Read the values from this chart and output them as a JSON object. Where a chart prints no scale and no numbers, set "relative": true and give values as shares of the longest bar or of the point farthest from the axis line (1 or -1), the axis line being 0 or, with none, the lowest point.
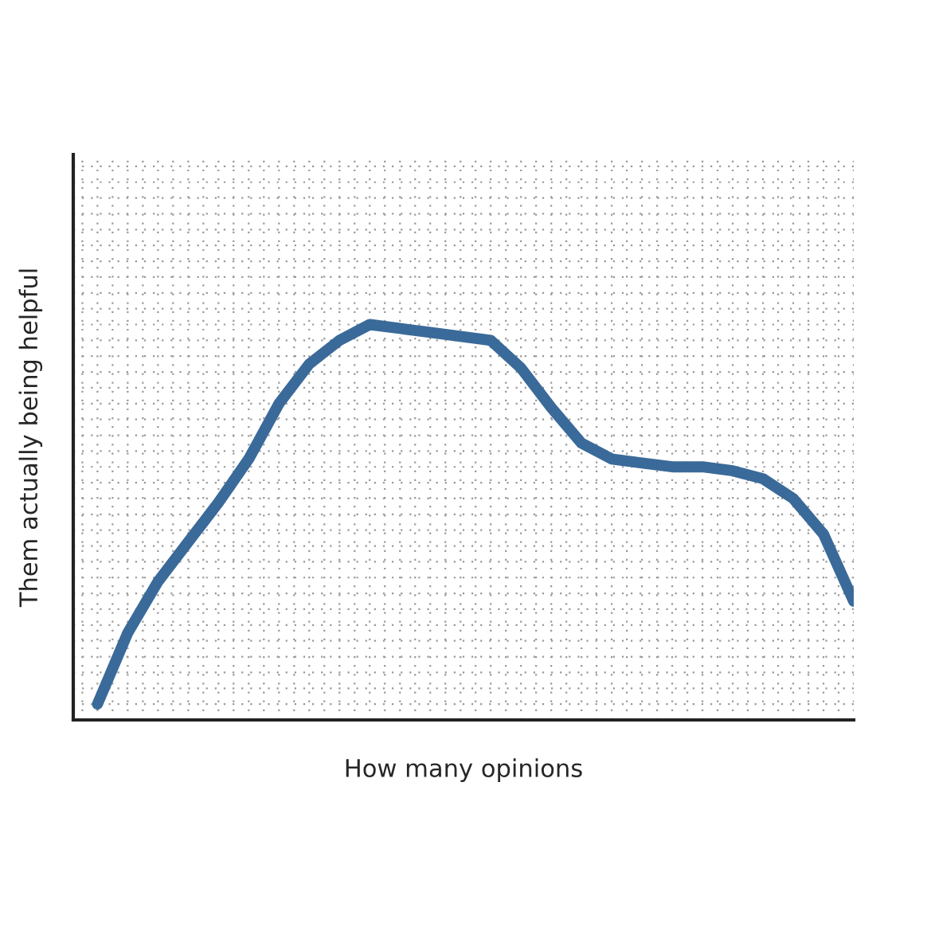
{
  "chart_data": {
    "type": "line",
    "relative": true,
    "xlabel": "How many opinions",
    "ylabel": "Them actually being helpful",
    "grid": true,
    "categories": [
      null,
      null,
      null,
      null,
      null,
      null,
      null,
      null,
      null,
      null,
      null,
      null,
      null,
      null,
      null,
      null,
      null,
      null,
      null,
      null,
      null,
      null,
      null,
      null,
      null,
      null
    ],
    "series": [
      {
        "color": "#3a6a99",
        "values": [
          0.04,
          0.22,
          0.35,
          0.45,
          0.55,
          0.66,
          0.8,
          0.9,
          0.96,
          1.0,
          0.99,
          0.98,
          0.97,
          0.96,
          0.89,
          0.79,
          0.7,
          0.66,
          0.65,
          0.64,
          0.64,
          0.63,
          0.61,
          0.56,
          0.47,
          0.3
        ]
      }
    ]
  }
}
